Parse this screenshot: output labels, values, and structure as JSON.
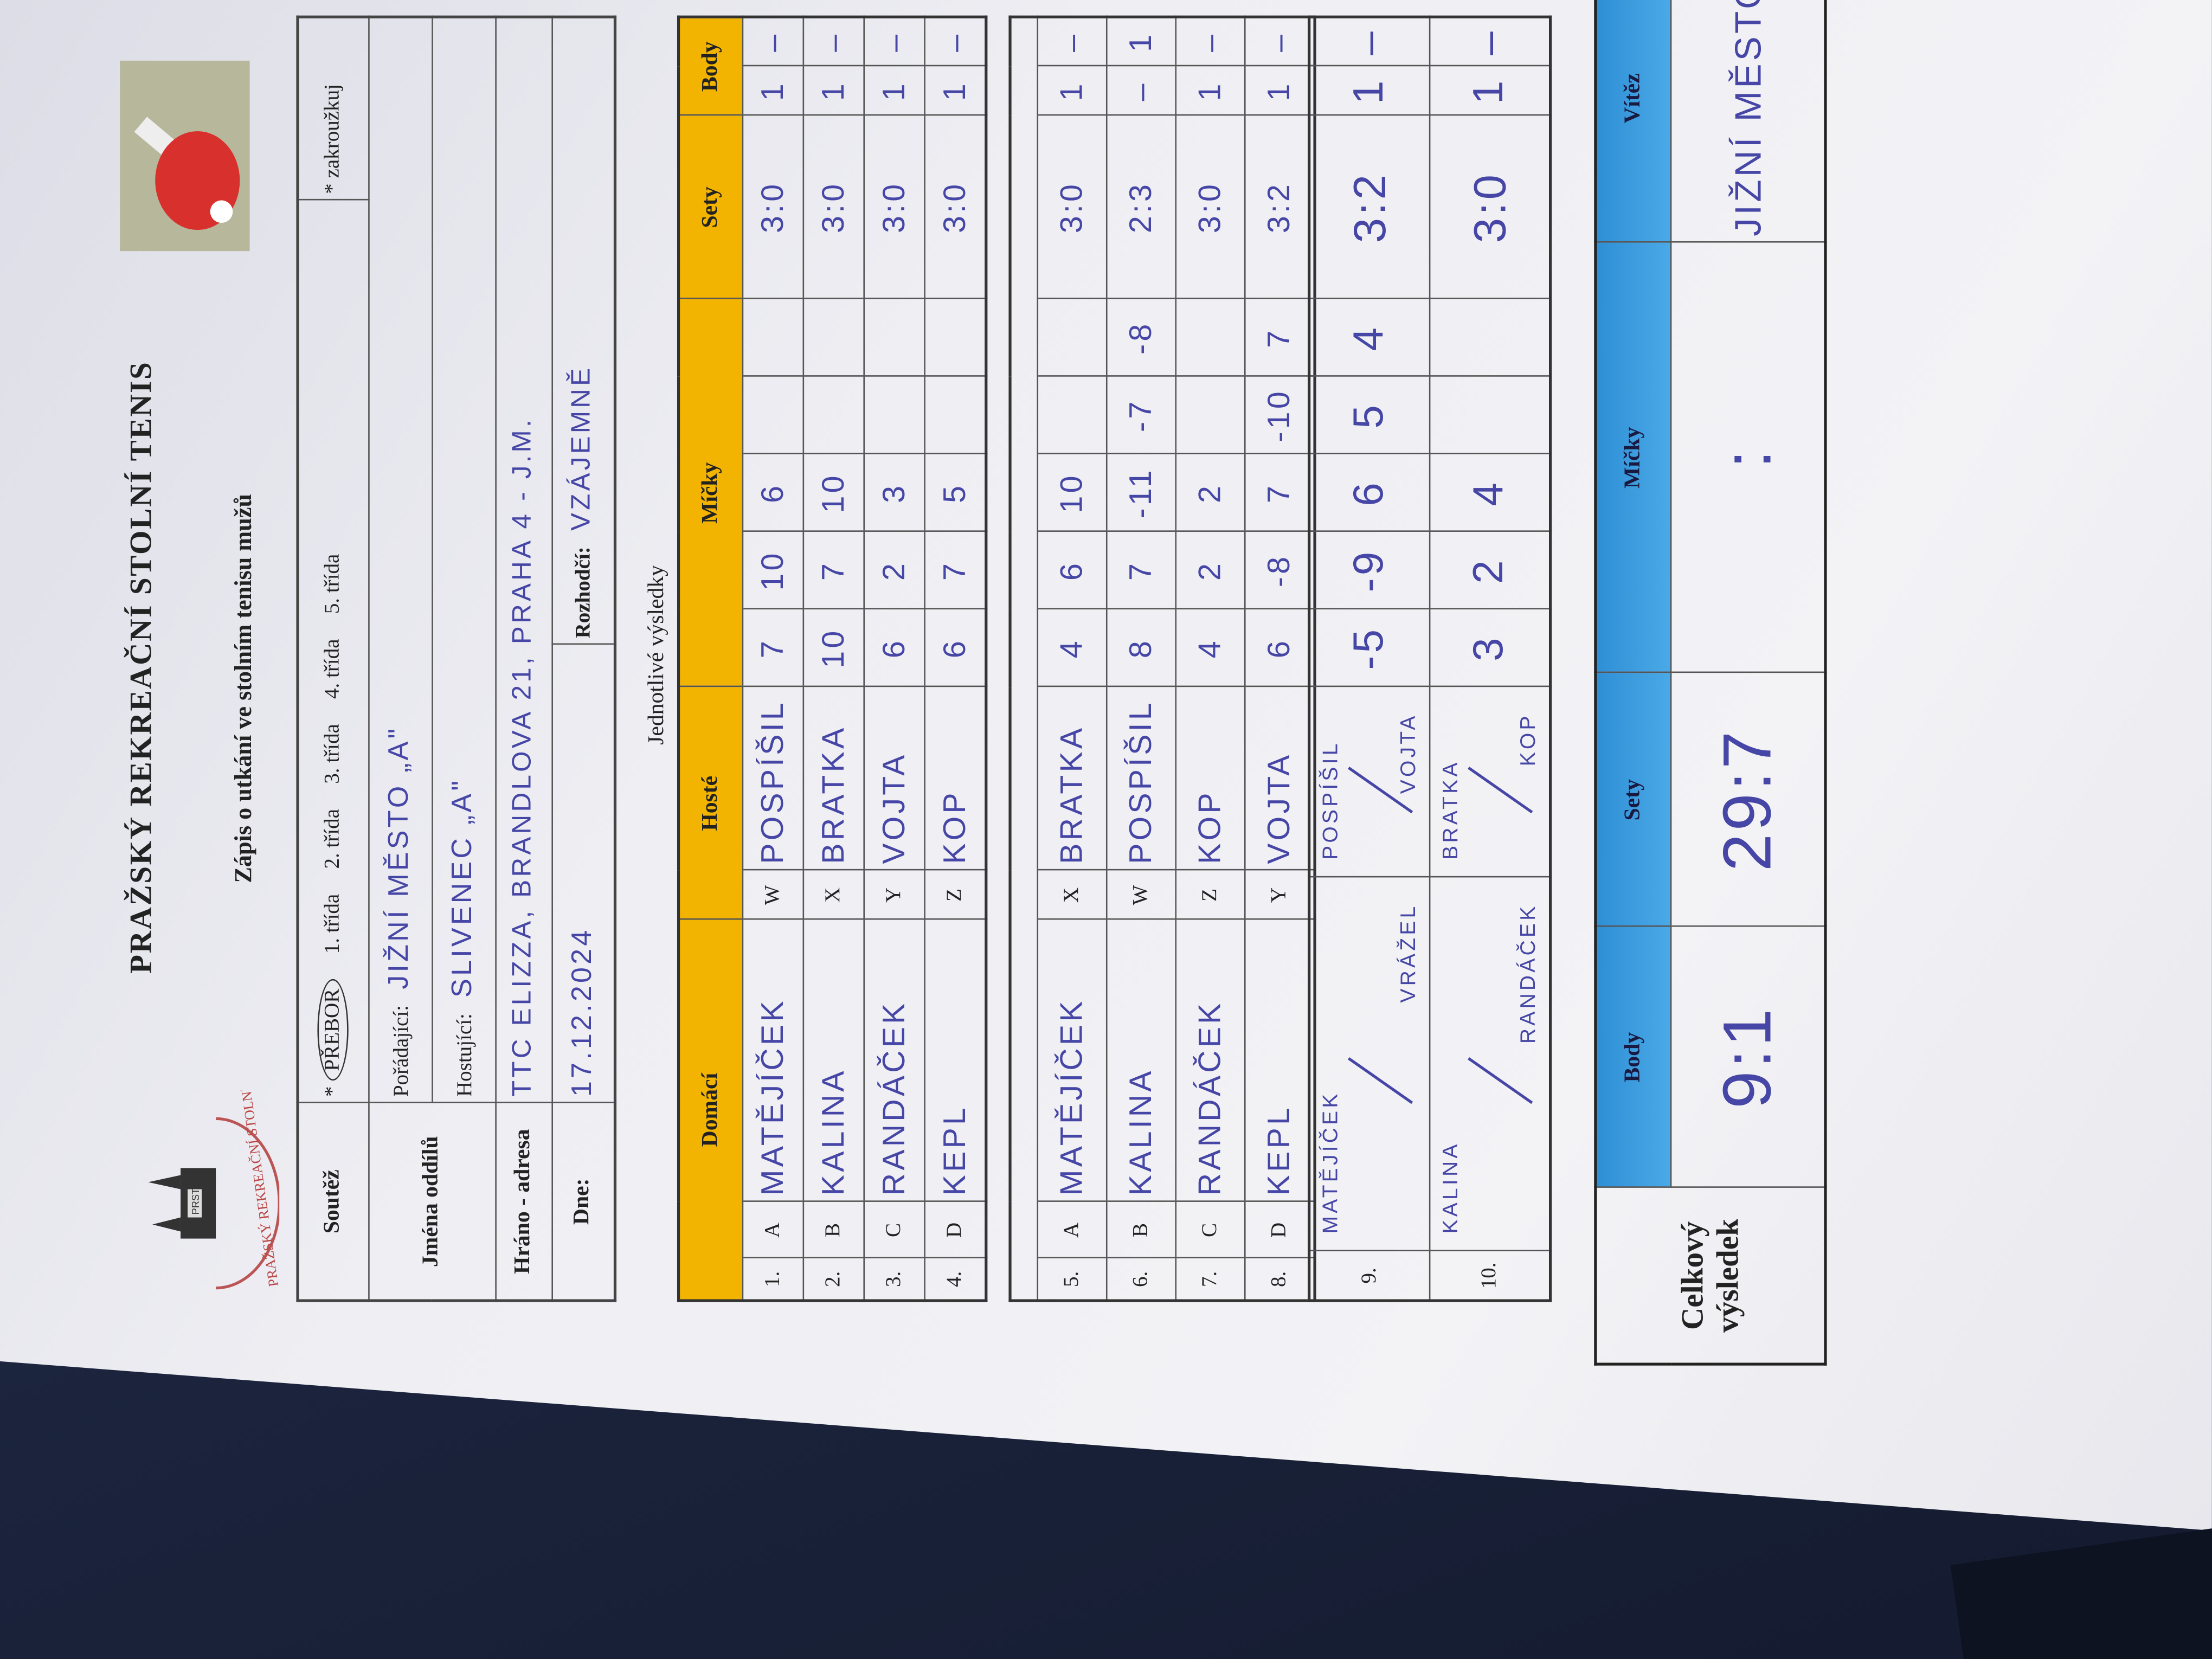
{
  "header": {
    "title": "PRAŽSKÝ REKREAČNÍ STOLNÍ TENIS",
    "subtitle": "Zápis o utkání ve stolním tenisu mužů",
    "logo_text": "PRAŽSKÝ REKREAČNÍ STOLNÍ TENIS",
    "logo_abbr": "PRST"
  },
  "info": {
    "competition_label": "Soutěž",
    "star": "*",
    "classes": [
      "PŘEBOR",
      "1. třída",
      "2. třída",
      "3. třída",
      "4. třída",
      "5. třída"
    ],
    "selected_class": "PŘEBOR",
    "circle_hint": "* zakroužkuj",
    "teams_label": "Jména oddílů",
    "organizer_label": "Pořádající:",
    "organizer": "JIŽNÍ MĚSTO „A\"",
    "guest_label": "Hostující:",
    "guest": "SLIVENEC „A\"",
    "venue_label": "Hráno - adresa",
    "venue": "TTC ELIZZA, BRANDLOVA 21, PRAHA 4 - J.M.",
    "date_label": "Dne:",
    "date": "17.12.2024",
    "referee_label": "Rozhodčí:",
    "referee": "VZÁJEMNĚ"
  },
  "results_title": "Jednotlivé výsledky",
  "columns": {
    "home": "Domácí",
    "guests": "Hosté",
    "balls": "Míčky",
    "sets": "Sety",
    "points": "Body"
  },
  "singles": [
    {
      "no": "1.",
      "home_letter": "A",
      "home": "MATĚJÍČEK",
      "guest_letter": "W",
      "guest": "POSPÍŠIL",
      "balls": [
        "7",
        "10",
        "6",
        "",
        ""
      ],
      "sets": "3:0",
      "home_points": "1",
      "guest_points": "–"
    },
    {
      "no": "2.",
      "home_letter": "B",
      "home": "KALINA",
      "guest_letter": "X",
      "guest": "BRATKA",
      "balls": [
        "10",
        "7",
        "10",
        "",
        ""
      ],
      "sets": "3:0",
      "home_points": "1",
      "guest_points": "–"
    },
    {
      "no": "3.",
      "home_letter": "C",
      "home": "RANDÁČEK",
      "guest_letter": "Y",
      "guest": "VOJTA",
      "balls": [
        "6",
        "2",
        "3",
        "",
        ""
      ],
      "sets": "3:0",
      "home_points": "1",
      "guest_points": "–"
    },
    {
      "no": "4.",
      "home_letter": "D",
      "home": "KEPL",
      "guest_letter": "Z",
      "guest": "KOP",
      "balls": [
        "6",
        "7",
        "5",
        "",
        ""
      ],
      "sets": "3:0",
      "home_points": "1",
      "guest_points": "–"
    },
    {
      "no": "5.",
      "home_letter": "A",
      "home": "MATĚJÍČEK",
      "guest_letter": "X",
      "guest": "BRATKA",
      "balls": [
        "4",
        "6",
        "10",
        "",
        ""
      ],
      "sets": "3:0",
      "home_points": "1",
      "guest_points": "–"
    },
    {
      "no": "6.",
      "home_letter": "B",
      "home": "KALINA",
      "guest_letter": "W",
      "guest": "POSPÍŠIL",
      "balls": [
        "8",
        "7",
        "-11",
        "-7",
        "-8"
      ],
      "sets": "2:3",
      "home_points": "–",
      "guest_points": "1"
    },
    {
      "no": "7.",
      "home_letter": "C",
      "home": "RANDÁČEK",
      "guest_letter": "Z",
      "guest": "KOP",
      "balls": [
        "4",
        "2",
        "2",
        "",
        ""
      ],
      "sets": "3:0",
      "home_points": "1",
      "guest_points": "–"
    },
    {
      "no": "8.",
      "home_letter": "D",
      "home": "KEPL",
      "guest_letter": "Y",
      "guest": "VOJTA",
      "balls": [
        "6",
        "-8",
        "7",
        "-10",
        "7"
      ],
      "sets": "3:2",
      "home_points": "1",
      "guest_points": "–"
    }
  ],
  "doubles": [
    {
      "no": "9.",
      "home_1": "MATĚJÍČEK",
      "home_2": "VRÁŽEL",
      "guest_1": "POSPÍŠIL",
      "guest_2": "VOJTA",
      "balls": [
        "-5",
        "-9",
        "6",
        "5",
        "4"
      ],
      "sets": "3:2",
      "home_points": "1",
      "guest_points": "–"
    },
    {
      "no": "10.",
      "home_1": "KALINA",
      "home_2": "RANDÁČEK",
      "guest_1": "BRATKA",
      "guest_2": "KOP",
      "balls": [
        "3",
        "2",
        "4",
        "",
        ""
      ],
      "sets": "3:0",
      "home_points": "1",
      "guest_points": "–"
    }
  ],
  "total": {
    "label": "Celkový výsledek",
    "points_label": "Body",
    "points": "9:1",
    "sets_label": "Sety",
    "sets": "29:7",
    "balls_label": "Míčky",
    "balls": ":",
    "winner_label": "Vítěz",
    "winner": "JIŽNÍ MĚSTO „A\""
  },
  "colors": {
    "header_yellow": "#f2b400",
    "total_blue": "#3a9ad9",
    "ink": "#4646a6"
  }
}
